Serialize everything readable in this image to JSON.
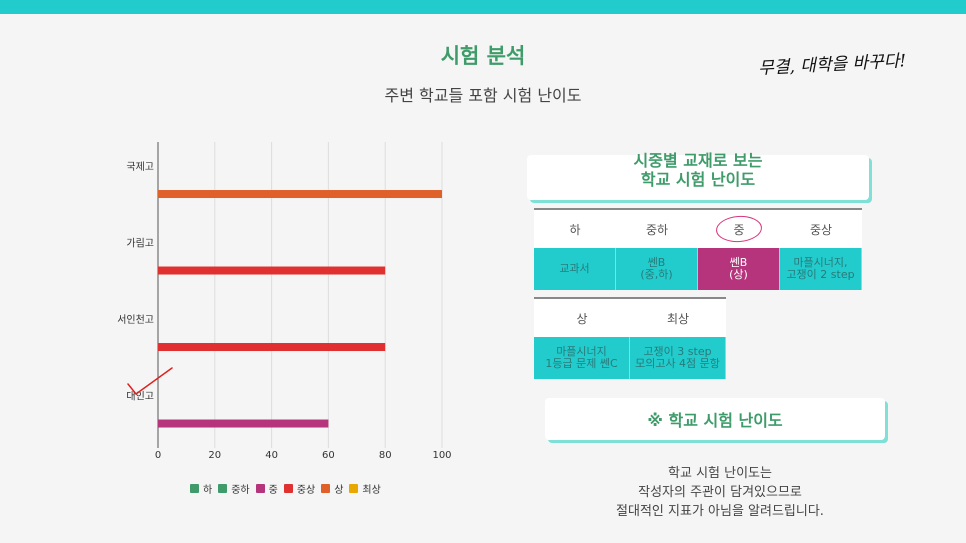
{
  "header": {
    "title": "시험 분석",
    "subtitle": "주변 학교들 포함 시험 난이도",
    "slogan": "무결, 대학을 바꾸다!"
  },
  "chart_data": {
    "type": "bar",
    "orientation": "horizontal",
    "categories": [
      "국제고",
      "가림고",
      "서인천고",
      "대인고"
    ],
    "values": [
      100,
      80,
      80,
      60
    ],
    "value_levels": [
      "상",
      "중상",
      "중상",
      "중"
    ],
    "xlim": [
      0,
      100
    ],
    "xticks": [
      0,
      20,
      40,
      60,
      80,
      100
    ],
    "grid": true,
    "legend_position": "bottom",
    "legend": [
      {
        "name": "하",
        "color": "#3f9c6a"
      },
      {
        "name": "중하",
        "color": "#3f9c6a"
      },
      {
        "name": "중",
        "color": "#b5347c"
      },
      {
        "name": "중상",
        "color": "#e03030"
      },
      {
        "name": "상",
        "color": "#e0602a"
      },
      {
        "name": "최상",
        "color": "#e8a800"
      }
    ]
  },
  "textbook_panel": {
    "title_line1": "시중별 교재로 보는",
    "title_line2": "학교 시험 난이도",
    "row1_headers": [
      "하",
      "중하",
      "중",
      "중상"
    ],
    "row1_values": [
      [
        "교과서",
        ""
      ],
      [
        "쎈B",
        "(중,하)"
      ],
      [
        "쎈B",
        "(상)"
      ],
      [
        "마플시너지,",
        "고쟁이 2 step"
      ]
    ],
    "row2_headers": [
      "상",
      "최상"
    ],
    "row2_values": [
      [
        "마플시너지",
        "1등급 문제 쎈C"
      ],
      [
        "고쟁이 3 step",
        "모의고사 4점 문항"
      ]
    ]
  },
  "note": {
    "title": "※ 학교 시험 난이도",
    "lines": [
      "학교 시험 난이도는",
      "작성자의 주관이 담겨있으므로",
      "절대적인 지표가 아님을 알려드립니다."
    ]
  },
  "colors": {
    "accent": "#22cccc",
    "title_green": "#3f9c6a",
    "pink": "#b5347c"
  }
}
